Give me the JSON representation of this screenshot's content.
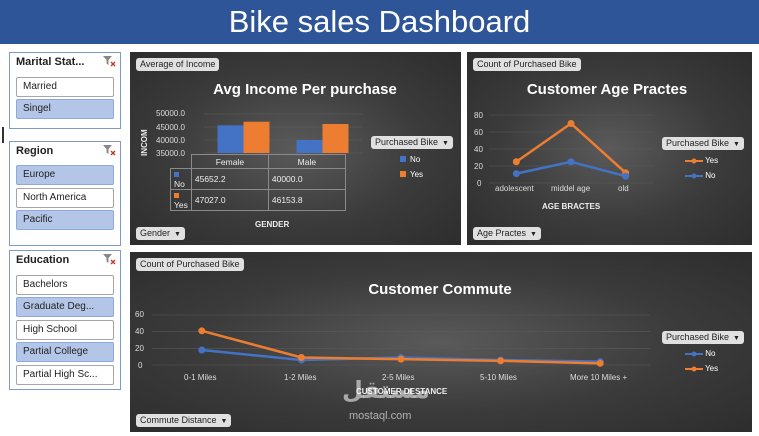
{
  "title": "Bike sales Dashboard",
  "slicers": {
    "marital": {
      "header": "Marital Stat...",
      "items": [
        {
          "label": "Married",
          "selected": false
        },
        {
          "label": "Singel",
          "selected": true
        }
      ]
    },
    "region": {
      "header": "Region",
      "items": [
        {
          "label": "Europe",
          "selected": true
        },
        {
          "label": "North America",
          "selected": false
        },
        {
          "label": "Pacific",
          "selected": true
        }
      ]
    },
    "education": {
      "header": "Education",
      "items": [
        {
          "label": "Bachelors",
          "selected": false
        },
        {
          "label": "Graduate Deg...",
          "selected": true
        },
        {
          "label": "High School",
          "selected": false
        },
        {
          "label": "Partial College",
          "selected": true
        },
        {
          "label": "Partial High Sc...",
          "selected": false
        }
      ]
    }
  },
  "income_chart": {
    "value_field": "Average of Income",
    "axis_field": "Gender",
    "legend_field": "Purchased Bike",
    "legend": [
      "No",
      "Yes"
    ],
    "colors": {
      "No": "#4472c4",
      "Yes": "#ed7d31"
    },
    "ylabel": "INCOM",
    "xlabel": "GENDER",
    "ticks": [
      "50000.0",
      "45000.0",
      "40000.0",
      "35000.0"
    ],
    "table_headers": [
      "Female",
      "Male"
    ],
    "table_rows": [
      {
        "label": "No",
        "values": [
          "45652.2",
          "40000.0"
        ]
      },
      {
        "label": "Yes",
        "values": [
          "47027.0",
          "46153.8"
        ]
      }
    ]
  },
  "age_chart": {
    "value_field": "Count of Purchased Bike",
    "axis_field": "Age Practes",
    "legend_field": "Purchased Bike",
    "legend": [
      "Yes",
      "No"
    ],
    "ticks": [
      "80",
      "60",
      "40",
      "20",
      "0"
    ],
    "xlabel": "AGE BRACTES",
    "colors": {
      "Yes": "#ed7d31",
      "No": "#4472c4"
    }
  },
  "commute_chart": {
    "value_field": "Count of Purchased Bike",
    "axis_field": "Commute Distance",
    "legend_field": "Purchased Bike",
    "legend": [
      "No",
      "Yes"
    ],
    "ticks": [
      "60",
      "40",
      "20",
      "0"
    ],
    "xlabel": "CUSTOMER DESTANCE",
    "colors": {
      "No": "#4472c4",
      "Yes": "#ed7d31"
    }
  },
  "watermark": {
    "brand": "مستقل",
    "url": "mostaql.com"
  },
  "chart_data": [
    {
      "type": "bar",
      "title": "Avg Income Per purchase",
      "categories": [
        "Female",
        "Male"
      ],
      "series": [
        {
          "name": "No",
          "values": [
            45652.2,
            40000.0
          ]
        },
        {
          "name": "Yes",
          "values": [
            47027.0,
            46153.8
          ]
        }
      ],
      "xlabel": "GENDER",
      "ylabel": "INCOM",
      "ylim": [
        35000,
        50000
      ],
      "legend": "right",
      "grid": true
    },
    {
      "type": "line",
      "title": "Customer Age Practes",
      "categories": [
        "adolescent",
        "middel age",
        "old"
      ],
      "series": [
        {
          "name": "Yes",
          "values": [
            25,
            70,
            12
          ]
        },
        {
          "name": "No",
          "values": [
            11,
            25,
            8
          ]
        }
      ],
      "xlabel": "AGE BRACTES",
      "ylabel": "",
      "ylim": [
        0,
        80
      ],
      "legend": "right",
      "grid": true
    },
    {
      "type": "line",
      "title": "Customer Commute",
      "categories": [
        "0-1 Miles",
        "1-2 Miles",
        "2-5 Miles",
        "5-10 Miles",
        "More 10 Miles +"
      ],
      "series": [
        {
          "name": "No",
          "values": [
            18,
            6,
            9,
            6,
            4
          ]
        },
        {
          "name": "Yes",
          "values": [
            41,
            9,
            7,
            5,
            2
          ]
        }
      ],
      "xlabel": "CUSTOMER DESTANCE",
      "ylabel": "",
      "ylim": [
        0,
        60
      ],
      "legend": "right",
      "grid": true
    }
  ]
}
